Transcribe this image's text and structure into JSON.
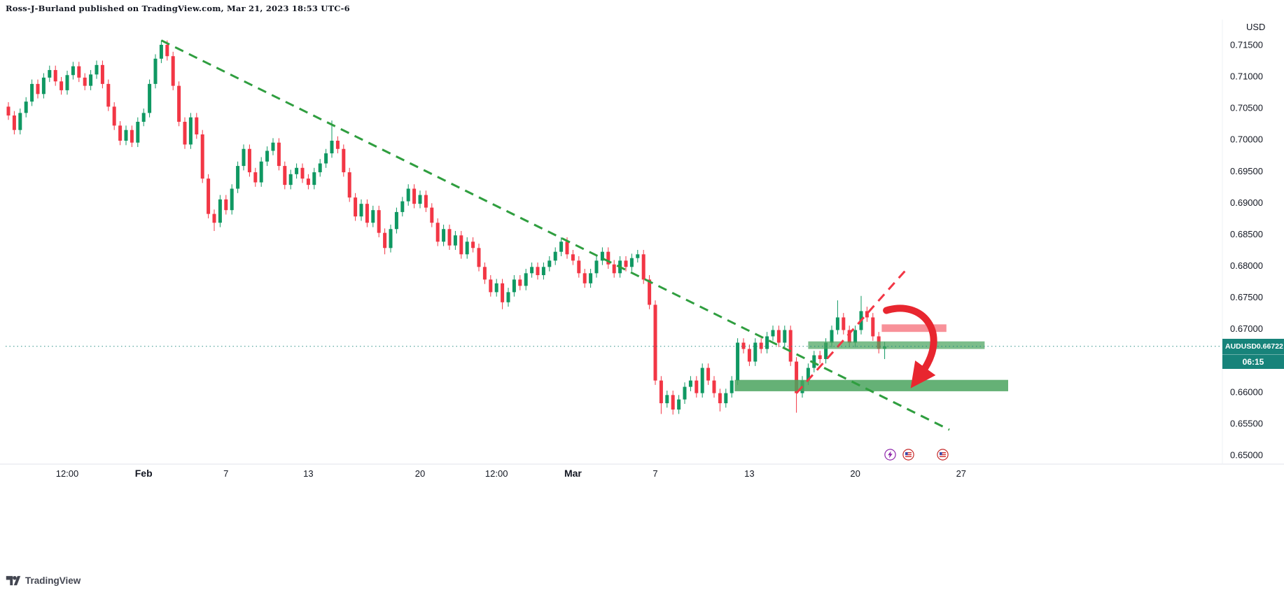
{
  "meta": {
    "attribution": "Ross-J-Burland published on TradingView.com, Mar 21, 2023 18:53 UTC-6",
    "logo_text": "TradingView"
  },
  "symbol_label": {
    "symbol": "AUDUSD",
    "price": "0.66722",
    "countdown": "06:15"
  },
  "price_scale": {
    "currency_label": "USD",
    "ticks": [
      "0.71500",
      "0.71000",
      "0.70500",
      "0.70000",
      "0.69500",
      "0.69000",
      "0.68500",
      "0.68000",
      "0.67500",
      "0.67000",
      "0.66500",
      "0.66000",
      "0.65500",
      "0.65000"
    ]
  },
  "time_scale": {
    "ticks": [
      {
        "label": "12:00",
        "i": 10,
        "major": false
      },
      {
        "label": "Feb",
        "i": 23,
        "major": true
      },
      {
        "label": "7",
        "i": 37,
        "major": false
      },
      {
        "label": "13",
        "i": 51,
        "major": false
      },
      {
        "label": "20",
        "i": 70,
        "major": false
      },
      {
        "label": "12:00",
        "i": 83,
        "major": false
      },
      {
        "label": "Mar",
        "i": 96,
        "major": true
      },
      {
        "label": "7",
        "i": 110,
        "major": false
      },
      {
        "label": "13",
        "i": 126,
        "major": false
      },
      {
        "label": "20",
        "i": 144,
        "major": false
      },
      {
        "label": "27",
        "i": 162,
        "major": false
      }
    ]
  },
  "event_markers": [
    {
      "type": "flash",
      "i": 149.9
    },
    {
      "type": "us-flag",
      "i": 153.0
    },
    {
      "type": "us-flag",
      "i": 158.9
    }
  ],
  "chart_data": {
    "type": "candlestick",
    "symbol": "AUDUSD",
    "x_axis": "time, late Jan 2023 - late Mar 2023 (intraday bars)",
    "y_axis": "AUD/USD exchange rate",
    "ylim": [
      0.648,
      0.7185
    ],
    "last_price": 0.66722,
    "first_open": 0.7052,
    "default_wick": 0.0007,
    "closes": [
      0.7038,
      0.7015,
      0.7042,
      0.706,
      0.7088,
      0.7072,
      0.7098,
      0.711,
      0.7092,
      0.7078,
      0.7102,
      0.7116,
      0.7098,
      0.7085,
      0.7103,
      0.7118,
      0.7088,
      0.7052,
      0.7022,
      0.6998,
      0.7015,
      0.6995,
      0.7028,
      0.7042,
      0.7088,
      0.7128,
      0.715,
      0.7132,
      0.7085,
      0.7028,
      0.6992,
      0.7035,
      0.7008,
      0.6938,
      0.6882,
      0.6868,
      0.6905,
      0.6888,
      0.6922,
      0.6958,
      0.6985,
      0.6948,
      0.6932,
      0.6965,
      0.6982,
      0.6995,
      0.6958,
      0.6928,
      0.6945,
      0.6955,
      0.6938,
      0.6928,
      0.6948,
      0.6962,
      0.6978,
      0.6998,
      0.6985,
      0.6948,
      0.6908,
      0.6878,
      0.6898,
      0.6868,
      0.6888,
      0.6852,
      0.6828,
      0.6858,
      0.6885,
      0.6902,
      0.6922,
      0.6898,
      0.6912,
      0.6892,
      0.6868,
      0.6838,
      0.6858,
      0.6832,
      0.6848,
      0.6818,
      0.6838,
      0.6828,
      0.6798,
      0.6778,
      0.6758,
      0.6772,
      0.6742,
      0.6758,
      0.6778,
      0.6768,
      0.6788,
      0.6798,
      0.6785,
      0.6798,
      0.6808,
      0.6822,
      0.6838,
      0.6818,
      0.6808,
      0.6788,
      0.6772,
      0.6788,
      0.6808,
      0.6822,
      0.6802,
      0.6788,
      0.6808,
      0.6798,
      0.6812,
      0.6818,
      0.6778,
      0.6738,
      0.6618,
      0.6582,
      0.6595,
      0.6572,
      0.6588,
      0.6608,
      0.6618,
      0.6598,
      0.6638,
      0.6618,
      0.6598,
      0.6582,
      0.6598,
      0.6618,
      0.6678,
      0.6668,
      0.6648,
      0.6678,
      0.6668,
      0.6688,
      0.6698,
      0.6678,
      0.6698,
      0.6648,
      0.6598,
      0.6618,
      0.6638,
      0.6658,
      0.6652,
      0.6678,
      0.6698,
      0.6718,
      0.6698,
      0.6678,
      0.6698,
      0.6728,
      0.6718,
      0.6688,
      0.6668,
      0.66722
    ],
    "wick_overrides": {
      "26": {
        "h": 0.7157
      },
      "35": {
        "l": 0.6855
      },
      "55": {
        "h": 0.703
      },
      "64": {
        "l": 0.6818
      },
      "84": {
        "l": 0.6731
      },
      "111": {
        "l": 0.6565
      },
      "113": {
        "l": 0.6564
      },
      "121": {
        "l": 0.6569
      },
      "134": {
        "l": 0.6567
      },
      "141": {
        "h": 0.6745
      },
      "145": {
        "h": 0.6752
      },
      "149": {
        "l": 0.6652
      }
    },
    "colors": {
      "up": "#0f9862",
      "down": "#f23645",
      "trend_green": "#2f9e3f",
      "trend_red": "#f23645",
      "zone_green": "#4aa35e",
      "label_teal": "#17837a",
      "arrow_red": "#e8262f",
      "axis_text": "#131722"
    },
    "annotations": {
      "trendlines": [
        {
          "name": "downtrend-line",
          "i1": 26,
          "p1": 0.7157,
          "i2": 160,
          "p2": 0.654,
          "color": "#2f9e3f"
        },
        {
          "name": "ascending-line",
          "i1": 134,
          "p1": 0.6598,
          "i2": 152.5,
          "p2": 0.6792,
          "color": "#f23645"
        }
      ],
      "zones": [
        {
          "name": "support-zone-upper",
          "i1": 136,
          "i2": 166,
          "p1": 0.6668,
          "p2": 0.668,
          "color": "#4aa35e",
          "opacity": 0.72
        },
        {
          "name": "support-zone-lower",
          "i1": 123.5,
          "i2": 170,
          "p1": 0.6601,
          "p2": 0.6619,
          "color": "#4aa35e",
          "opacity": 0.85
        },
        {
          "name": "resistance-bar",
          "i1": 148.5,
          "i2": 159.5,
          "p1": 0.6695,
          "p2": 0.6707,
          "color": "#f23645",
          "opacity": 0.55
        }
      ],
      "arrow": {
        "i1": 149.3,
        "p1": 0.6729,
        "i2": 155.3,
        "p2": 0.663,
        "color": "#e8262f"
      },
      "current_price_line": 0.66722
    }
  }
}
